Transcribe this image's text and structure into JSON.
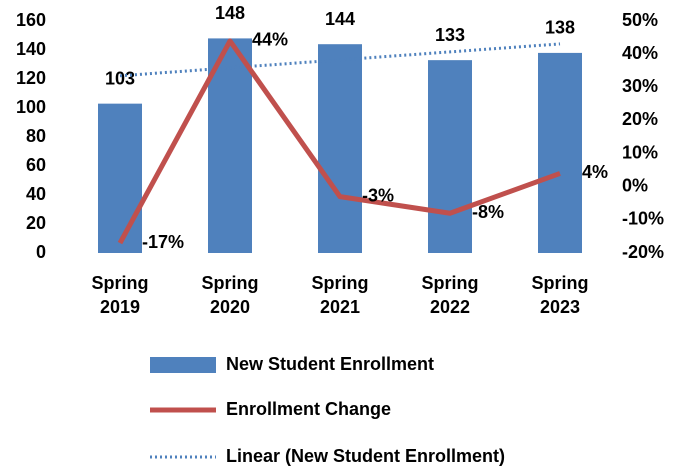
{
  "chart_data": {
    "type": "bar",
    "categories": [
      "Spring 2019",
      "Spring 2020",
      "Spring 2021",
      "Spring 2022",
      "Spring 2023"
    ],
    "series": [
      {
        "name": "New Student Enrollment",
        "type": "bar",
        "color": "#4f81bd",
        "values": [
          103,
          148,
          144,
          133,
          138
        ],
        "trendline": {
          "name": "Linear (New Student Enrollment)",
          "type": "linear",
          "color": "#4f81bd"
        }
      },
      {
        "name": "Enrollment Change",
        "type": "line",
        "axis": "y2",
        "color": "#c0504d",
        "values": [
          -17,
          44,
          -3,
          -8,
          4
        ],
        "value_labels": [
          "-17%",
          "44%",
          "-3%",
          "-8%",
          "4%"
        ]
      }
    ],
    "ylim": [
      0,
      160
    ],
    "yticks": [
      0,
      20,
      40,
      60,
      80,
      100,
      120,
      140,
      160
    ],
    "y2lim": [
      -20,
      50
    ],
    "y2ticks": [
      {
        "value": -20,
        "label": "-20%"
      },
      {
        "value": -10,
        "label": "-10%"
      },
      {
        "value": 0,
        "label": "0%"
      },
      {
        "value": 10,
        "label": "10%"
      },
      {
        "value": 20,
        "label": "20%"
      },
      {
        "value": 30,
        "label": "30%"
      },
      {
        "value": 40,
        "label": "40%"
      },
      {
        "value": 50,
        "label": "50%"
      }
    ],
    "grid": false,
    "legend": "bottom"
  }
}
